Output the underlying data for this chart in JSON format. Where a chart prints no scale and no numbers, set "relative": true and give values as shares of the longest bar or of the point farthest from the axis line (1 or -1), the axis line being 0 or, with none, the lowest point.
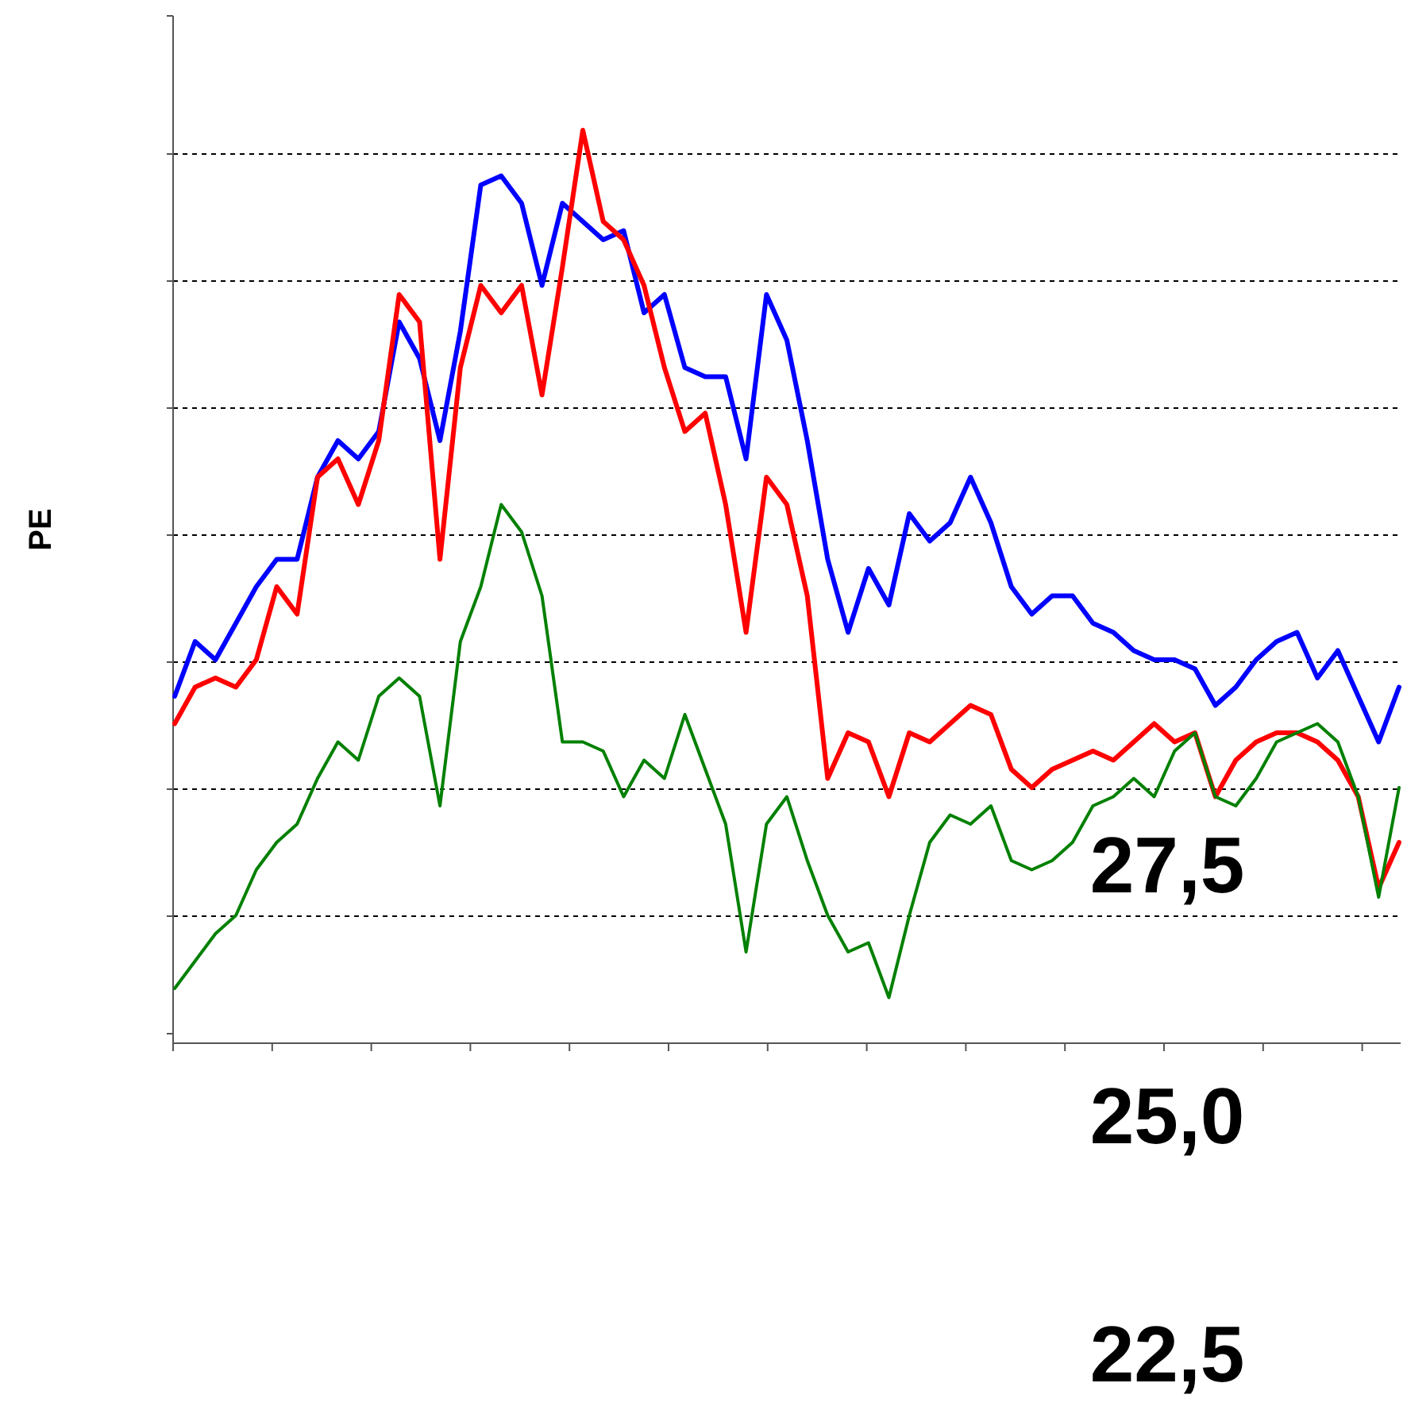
{
  "chart_data": {
    "type": "line",
    "relative": true,
    "ylabel": "PE",
    "grid": "y",
    "line_style": "solid",
    "categories": [
      null,
      null,
      null,
      null,
      null,
      null,
      null,
      null,
      null,
      null,
      null,
      null,
      null,
      null,
      null,
      null,
      null,
      null,
      null,
      null,
      null,
      null,
      null,
      null,
      null,
      null,
      null,
      null,
      null,
      null,
      null,
      null,
      null,
      null,
      null,
      null,
      null,
      null,
      null,
      null,
      null,
      null,
      null,
      null,
      null,
      null,
      null,
      null,
      null,
      null,
      null,
      null,
      null,
      null,
      null,
      null,
      null,
      null,
      null,
      null,
      null
    ],
    "series": [
      {
        "color": "#0000ff",
        "values": [
          0.38,
          0.44,
          0.42,
          0.46,
          0.5,
          0.53,
          0.53,
          0.62,
          0.66,
          0.64,
          0.67,
          0.79,
          0.75,
          0.66,
          0.78,
          0.94,
          0.95,
          0.92,
          0.83,
          0.92,
          0.9,
          0.88,
          0.89,
          0.8,
          0.82,
          0.74,
          0.73,
          0.73,
          0.64,
          0.82,
          0.77,
          0.66,
          0.53,
          0.45,
          0.52,
          0.48,
          0.58,
          0.55,
          0.57,
          0.62,
          0.57,
          0.5,
          0.47,
          0.49,
          0.49,
          0.46,
          0.45,
          0.43,
          0.42,
          0.42,
          0.41,
          0.37,
          0.39,
          0.42,
          0.44,
          0.45,
          0.4,
          0.43,
          0.38,
          0.33,
          0.39
        ]
      },
      {
        "color": "#ff0000",
        "values": [
          0.35,
          0.39,
          0.4,
          0.39,
          0.42,
          0.5,
          0.47,
          0.62,
          0.64,
          0.59,
          0.66,
          0.82,
          0.79,
          0.53,
          0.74,
          0.83,
          0.8,
          0.83,
          0.71,
          0.85,
          1,
          0.9,
          0.88,
          0.83,
          0.74,
          0.67,
          0.69,
          0.59,
          0.45,
          0.62,
          0.59,
          0.49,
          0.29,
          0.34,
          0.33,
          0.27,
          0.34,
          0.33,
          0.35,
          0.37,
          0.36,
          0.3,
          0.28,
          0.3,
          0.31,
          0.32,
          0.31,
          0.33,
          0.35,
          0.33,
          0.34,
          0.27,
          0.31,
          0.33,
          0.34,
          0.34,
          0.33,
          0.31,
          0.27,
          0.17,
          0.22
        ]
      },
      {
        "color": "#008000",
        "values": [
          0.06,
          0.09,
          0.12,
          0.14,
          0.19,
          0.22,
          0.24,
          0.29,
          0.33,
          0.31,
          0.38,
          0.4,
          0.38,
          0.26,
          0.44,
          0.5,
          0.59,
          0.56,
          0.49,
          0.33,
          0.33,
          0.32,
          0.27,
          0.31,
          0.29,
          0.36,
          0.3,
          0.24,
          0.1,
          0.24,
          0.27,
          0.2,
          0.14,
          0.1,
          0.11,
          0.05,
          0.14,
          0.22,
          0.25,
          0.24,
          0.26,
          0.2,
          0.19,
          0.2,
          0.22,
          0.26,
          0.27,
          0.29,
          0.27,
          0.32,
          0.34,
          0.27,
          0.26,
          0.29,
          0.33,
          0.34,
          0.35,
          0.33,
          0.27,
          0.16,
          0.28
        ]
      }
    ],
    "annotations": [
      "27,5",
      "25,0",
      "22,5"
    ]
  }
}
